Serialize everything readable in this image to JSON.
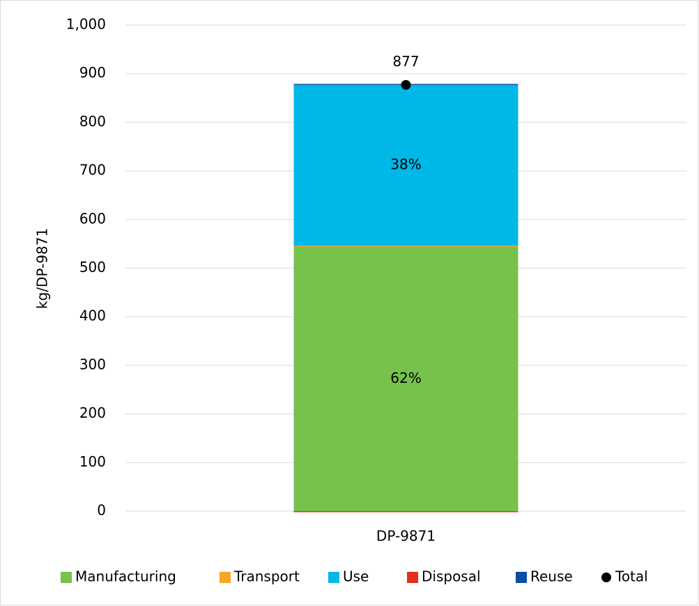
{
  "chart_data": {
    "type": "stacked_bar",
    "y_label": "kg/DP-9871",
    "categories": [
      "DP-9871"
    ],
    "series": [
      {
        "name": "Manufacturing",
        "color": "#77c14d",
        "values": [
          544
        ],
        "share_label": "62%"
      },
      {
        "name": "Transport",
        "color": "#f5a623",
        "values": [
          2
        ]
      },
      {
        "name": "Use",
        "color": "#00b8e8",
        "values": [
          331
        ],
        "share_label": "38%"
      },
      {
        "name": "Disposal",
        "color": "#e0301e",
        "values": [
          -2
        ]
      },
      {
        "name": "Reuse",
        "color": "#0a4fa0",
        "values": [
          2
        ]
      },
      {
        "name": "Total",
        "color": "#000000",
        "values": [
          877
        ],
        "marker": "dot"
      }
    ],
    "ylim": [
      0,
      1000
    ],
    "yticks": [
      0,
      100,
      200,
      300,
      400,
      500,
      600,
      700,
      800,
      900,
      {
        "value": 1000,
        "label": "1,000"
      }
    ],
    "grid": true,
    "legend": "bottom"
  }
}
